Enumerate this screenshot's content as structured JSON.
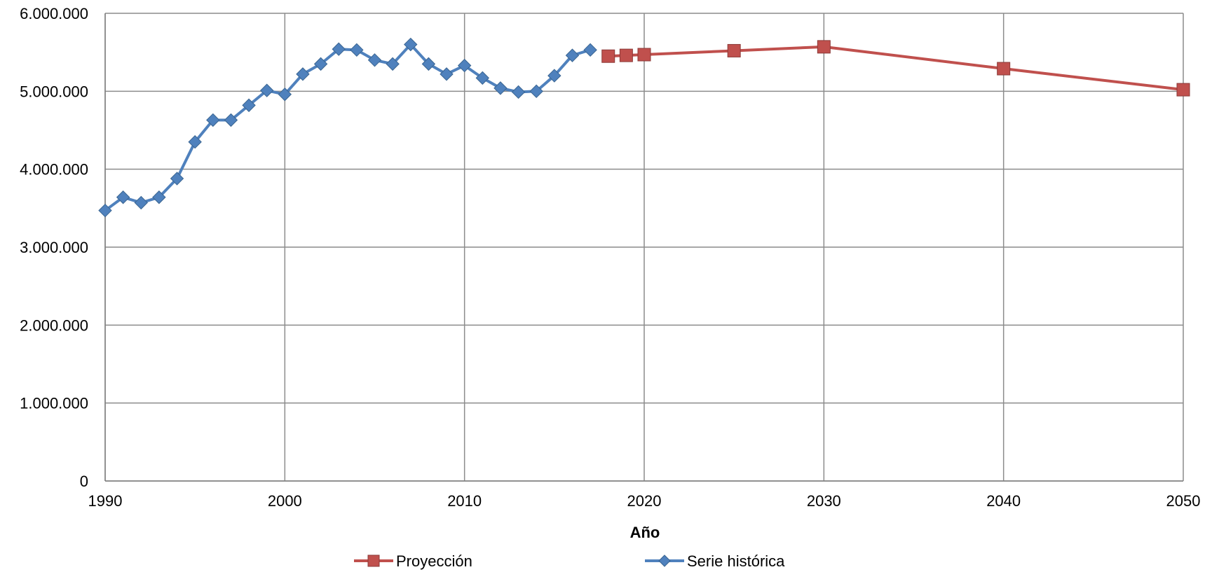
{
  "chart_data": {
    "type": "line",
    "title": "",
    "xlabel": "Año",
    "ylabel": "",
    "xlim": [
      1990,
      2050
    ],
    "ylim": [
      0,
      6000000
    ],
    "x_ticks": [
      1990,
      2000,
      2010,
      2020,
      2030,
      2040,
      2050
    ],
    "x_tick_labels": [
      "1990",
      "2000",
      "2010",
      "2020",
      "2030",
      "2040",
      "2050"
    ],
    "y_ticks": [
      0,
      1000000,
      2000000,
      3000000,
      4000000,
      5000000,
      6000000
    ],
    "y_tick_labels": [
      "0",
      "1.000.000",
      "2.000.000",
      "3.000.000",
      "4.000.000",
      "5.000.000",
      "6.000.000"
    ],
    "grid": true,
    "legend_position": "bottom",
    "series": [
      {
        "name": "Proyección",
        "color": "#C0504D",
        "marker": "square",
        "x": [
          2018,
          2019,
          2020,
          2025,
          2030,
          2040,
          2050
        ],
        "y": [
          5450000,
          5460000,
          5470000,
          5520000,
          5570000,
          5290000,
          5020000
        ]
      },
      {
        "name": "Serie histórica",
        "color": "#4F81BD",
        "marker": "diamond",
        "x": [
          1990,
          1991,
          1992,
          1993,
          1994,
          1995,
          1996,
          1997,
          1998,
          1999,
          2000,
          2001,
          2002,
          2003,
          2004,
          2005,
          2006,
          2007,
          2008,
          2009,
          2010,
          2011,
          2012,
          2013,
          2014,
          2015,
          2016,
          2017
        ],
        "y": [
          3470000,
          3640000,
          3570000,
          3640000,
          3880000,
          4350000,
          4630000,
          4630000,
          4820000,
          5010000,
          4960000,
          5220000,
          5350000,
          5540000,
          5530000,
          5400000,
          5350000,
          5600000,
          5350000,
          5220000,
          5330000,
          5170000,
          5040000,
          4990000,
          5000000,
          5200000,
          5460000,
          5530000
        ]
      }
    ]
  }
}
